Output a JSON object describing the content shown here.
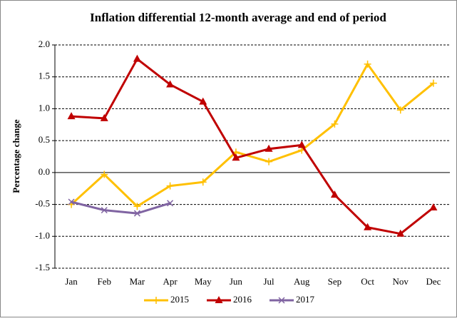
{
  "chart_data": {
    "type": "line",
    "title": "Inflation differential 12-month average and end of period",
    "y_label": "Percentage change",
    "categories": [
      "Jan",
      "Feb",
      "Mar",
      "Apr",
      "May",
      "Jun",
      "Jul",
      "Aug",
      "Sep",
      "Oct",
      "Nov",
      "Dec"
    ],
    "series": [
      {
        "name": "2015",
        "color": "#ffc000",
        "marker": "plus",
        "values": [
          -0.5,
          -0.03,
          -0.53,
          -0.21,
          -0.15,
          0.32,
          0.17,
          0.35,
          0.76,
          1.7,
          0.98,
          1.4
        ]
      },
      {
        "name": "2016",
        "color": "#c00000",
        "marker": "triangle",
        "values": [
          0.88,
          0.85,
          1.78,
          1.38,
          1.11,
          0.23,
          0.37,
          0.43,
          -0.35,
          -0.86,
          -0.96,
          -0.55
        ]
      },
      {
        "name": "2017",
        "color": "#8064a2",
        "marker": "x",
        "values": [
          -0.46,
          -0.59,
          -0.64,
          -0.48,
          null,
          null,
          null,
          null,
          null,
          null,
          null,
          null
        ]
      }
    ],
    "ylim": [
      -1.5,
      2.0
    ],
    "yticks": [
      {
        "value": 2.0,
        "label": "2.0"
      },
      1.5,
      {
        "value": 1.0,
        "label": "1.0"
      },
      0.5,
      {
        "value": 0,
        "label": "0.0"
      },
      -0.5,
      {
        "value": -1.0,
        "label": "-1.0"
      },
      -1.5
    ],
    "grid": true,
    "legend": "bottom"
  }
}
